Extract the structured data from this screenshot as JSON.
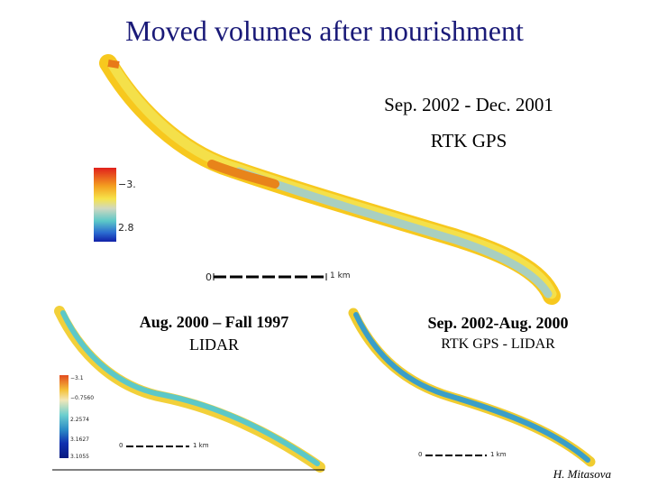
{
  "title": "Moved volumes after nourishment",
  "panels": {
    "top": {
      "period": "Sep. 2002 - Dec. 2001",
      "method": "RTK GPS",
      "legend_ticks": [
        "−3.",
        "2.8"
      ],
      "scale_start": "0",
      "scale_end": "1 km"
    },
    "bottom_left": {
      "period": "Aug. 2000 – Fall 1997",
      "method": "LIDAR",
      "legend_ticks": [
        "−3.1",
        "−0.7560",
        "2.2574",
        "3.1627",
        "3.1055"
      ],
      "scale_start": "0",
      "scale_end": "1 km"
    },
    "bottom_right": {
      "period": "Sep. 2002-Aug. 2000",
      "method": "RTK GPS - LIDAR",
      "scale_start": "0",
      "scale_end": "1 km"
    }
  },
  "credit": "H. Mitasova",
  "colors": {
    "title": "#1a1a78",
    "high": "#e0201c",
    "mid": "#f6e34a",
    "low": "#5cc8c8",
    "deep": "#1020a8"
  }
}
